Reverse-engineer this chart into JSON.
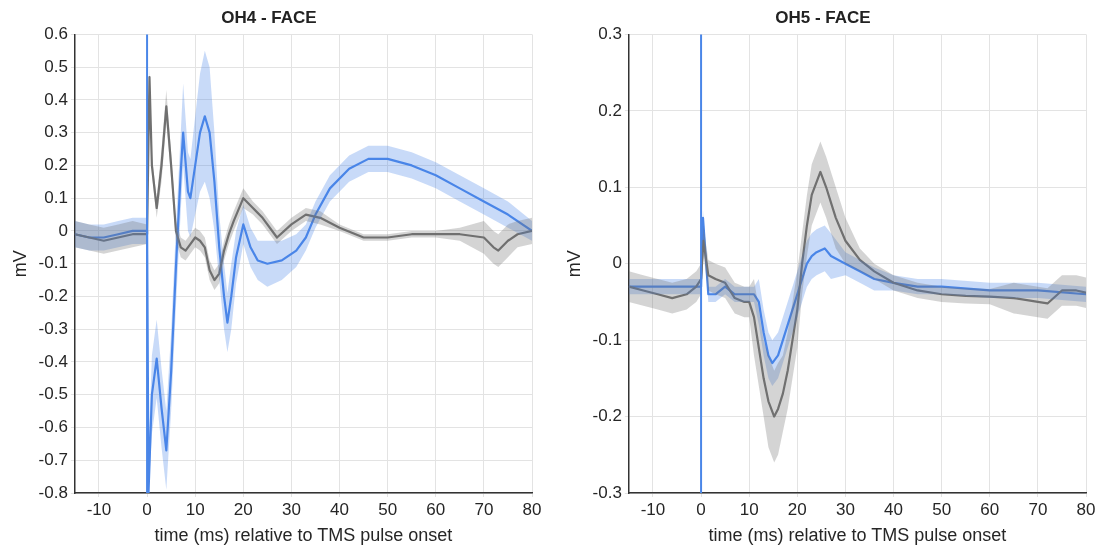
{
  "chart_data": [
    {
      "type": "line",
      "title": "OH4 - FACE",
      "xlabel": "time (ms) relative to TMS pulse onset",
      "ylabel": "mV",
      "xlim": [
        -15,
        80
      ],
      "xticks": [
        -10,
        0,
        10,
        20,
        30,
        40,
        50,
        60,
        70,
        80
      ],
      "ylim": [
        -0.8,
        0.6
      ],
      "yticks": [
        -0.8,
        -0.7,
        -0.6,
        -0.5,
        -0.4,
        -0.3,
        -0.2,
        -0.1,
        0,
        0.1,
        0.2,
        0.3,
        0.4,
        0.5,
        0.6
      ],
      "grid": true,
      "legend": false,
      "marker": "none",
      "line_style": "solid",
      "ref_lines": [
        {
          "axis": "x",
          "value": 0,
          "color": "#4a86e8"
        }
      ],
      "series": [
        {
          "color": "#707070",
          "x": [
            -15,
            -12,
            -9,
            -6,
            -3,
            0,
            0.5,
            1,
            2,
            3,
            4,
            5,
            6,
            7,
            8,
            9,
            10,
            11,
            12,
            13,
            14,
            15,
            16,
            17,
            18,
            20,
            22,
            24,
            27,
            30,
            33,
            36,
            40,
            45,
            50,
            55,
            60,
            65,
            70,
            72,
            73,
            75,
            77,
            80
          ],
          "values": [
            -0.01,
            -0.02,
            -0.03,
            -0.02,
            -0.01,
            -0.01,
            0.47,
            0.2,
            0.07,
            0.2,
            0.38,
            0.2,
            0.0,
            -0.05,
            -0.06,
            -0.04,
            -0.02,
            -0.03,
            -0.05,
            -0.12,
            -0.15,
            -0.13,
            -0.06,
            -0.01,
            0.03,
            0.1,
            0.07,
            0.04,
            -0.02,
            0.02,
            0.05,
            0.04,
            0.01,
            -0.02,
            -0.02,
            -0.01,
            -0.01,
            -0.01,
            -0.02,
            -0.05,
            -0.06,
            -0.03,
            -0.01,
            0.0
          ],
          "lower": [
            -0.05,
            -0.06,
            -0.07,
            -0.06,
            -0.05,
            -0.04,
            0.44,
            0.17,
            0.04,
            0.15,
            0.33,
            0.16,
            -0.03,
            -0.08,
            -0.09,
            -0.07,
            -0.05,
            -0.06,
            -0.08,
            -0.15,
            -0.18,
            -0.16,
            -0.09,
            -0.04,
            0.0,
            0.07,
            0.05,
            0.02,
            -0.04,
            0.0,
            0.03,
            0.02,
            0.0,
            -0.03,
            -0.03,
            -0.02,
            -0.02,
            -0.03,
            -0.07,
            -0.1,
            -0.11,
            -0.08,
            -0.05,
            -0.04
          ],
          "upper": [
            0.03,
            0.02,
            0.01,
            0.02,
            0.03,
            0.02,
            0.5,
            0.23,
            0.1,
            0.25,
            0.43,
            0.24,
            0.03,
            -0.02,
            -0.03,
            -0.01,
            0.01,
            0.0,
            -0.02,
            -0.09,
            -0.12,
            -0.1,
            -0.03,
            0.02,
            0.06,
            0.13,
            0.09,
            0.06,
            0.0,
            0.04,
            0.07,
            0.06,
            0.02,
            -0.01,
            -0.01,
            0.0,
            0.0,
            0.01,
            0.03,
            0.0,
            -0.01,
            0.02,
            0.03,
            0.04
          ]
        },
        {
          "color": "#4a86e8",
          "x": [
            -15,
            -12,
            -9,
            -6,
            -3,
            0,
            0.3,
            1,
            2,
            3,
            4,
            5,
            6,
            7,
            7.5,
            8.5,
            9,
            10,
            11,
            12,
            13,
            14,
            15,
            16,
            16.7,
            17.5,
            18.5,
            20,
            21.5,
            23,
            25,
            28,
            31,
            33,
            35,
            38,
            42,
            46,
            50,
            55,
            60,
            65,
            70,
            75,
            80
          ],
          "values": [
            -0.01,
            -0.02,
            -0.02,
            -0.01,
            0.0,
            0.0,
            -0.8,
            -0.5,
            -0.39,
            -0.54,
            -0.67,
            -0.43,
            -0.11,
            0.18,
            0.3,
            0.12,
            0.1,
            0.2,
            0.3,
            0.35,
            0.3,
            0.15,
            -0.05,
            -0.2,
            -0.28,
            -0.2,
            -0.08,
            0.02,
            -0.05,
            -0.09,
            -0.1,
            -0.09,
            -0.06,
            -0.02,
            0.05,
            0.13,
            0.19,
            0.22,
            0.22,
            0.2,
            0.17,
            0.13,
            0.09,
            0.05,
            0.0
          ],
          "lower": [
            -0.05,
            -0.06,
            -0.06,
            -0.05,
            -0.04,
            -0.04,
            -0.8,
            -0.62,
            -0.51,
            -0.66,
            -0.79,
            -0.55,
            -0.23,
            0.06,
            0.2,
            0.0,
            -0.02,
            0.05,
            0.12,
            0.15,
            0.1,
            0.0,
            -0.15,
            -0.3,
            -0.37,
            -0.3,
            -0.16,
            -0.04,
            -0.11,
            -0.15,
            -0.17,
            -0.15,
            -0.11,
            -0.06,
            0.01,
            0.09,
            0.15,
            0.18,
            0.18,
            0.16,
            0.13,
            0.09,
            0.05,
            0.01,
            -0.03
          ],
          "upper": [
            0.03,
            0.02,
            0.02,
            0.03,
            0.04,
            0.04,
            -0.68,
            -0.38,
            -0.27,
            -0.42,
            -0.55,
            -0.31,
            0.01,
            0.3,
            0.45,
            0.24,
            0.22,
            0.35,
            0.48,
            0.55,
            0.5,
            0.3,
            0.05,
            -0.1,
            -0.19,
            -0.1,
            0.0,
            0.08,
            0.01,
            -0.03,
            -0.03,
            -0.03,
            -0.01,
            0.02,
            0.09,
            0.17,
            0.23,
            0.26,
            0.26,
            0.24,
            0.21,
            0.17,
            0.13,
            0.09,
            0.03
          ]
        }
      ]
    },
    {
      "type": "line",
      "title": "OH5 - FACE",
      "xlabel": "time (ms) relative to TMS pulse onset",
      "ylabel": "mV",
      "xlim": [
        -15,
        80
      ],
      "xticks": [
        -10,
        0,
        10,
        20,
        30,
        40,
        50,
        60,
        70,
        80
      ],
      "ylim": [
        -0.3,
        0.3
      ],
      "yticks": [
        -0.3,
        -0.2,
        -0.1,
        0,
        0.1,
        0.2,
        0.3
      ],
      "grid": true,
      "legend": false,
      "marker": "none",
      "line_style": "solid",
      "ref_lines": [
        {
          "axis": "x",
          "value": 0,
          "color": "#4a86e8"
        }
      ],
      "series": [
        {
          "color": "#707070",
          "x": [
            -15,
            -12,
            -9,
            -6,
            -3,
            -1,
            0,
            0.5,
            1.5,
            3,
            5,
            7,
            9,
            10,
            11,
            12,
            13,
            14,
            15.2,
            16,
            17,
            18,
            19,
            20,
            21,
            22,
            23,
            24.8,
            26,
            27,
            28,
            30,
            33,
            36,
            40,
            45,
            50,
            55,
            60,
            65,
            70,
            72,
            75,
            78,
            80
          ],
          "values": [
            -0.03,
            -0.035,
            -0.04,
            -0.045,
            -0.04,
            -0.03,
            -0.02,
            0.03,
            -0.015,
            -0.02,
            -0.025,
            -0.045,
            -0.05,
            -0.05,
            -0.07,
            -0.11,
            -0.15,
            -0.18,
            -0.2,
            -0.19,
            -0.17,
            -0.14,
            -0.1,
            -0.06,
            0.0,
            0.05,
            0.09,
            0.12,
            0.1,
            0.08,
            0.06,
            0.03,
            0.005,
            -0.01,
            -0.025,
            -0.035,
            -0.04,
            -0.042,
            -0.043,
            -0.045,
            -0.05,
            -0.052,
            -0.035,
            -0.035,
            -0.038
          ],
          "lower": [
            -0.05,
            -0.055,
            -0.06,
            -0.065,
            -0.06,
            -0.05,
            -0.04,
            0.01,
            -0.035,
            -0.04,
            -0.045,
            -0.065,
            -0.07,
            -0.07,
            -0.12,
            -0.16,
            -0.2,
            -0.24,
            -0.26,
            -0.25,
            -0.22,
            -0.19,
            -0.15,
            -0.11,
            -0.04,
            0.01,
            0.05,
            0.08,
            0.06,
            0.04,
            0.02,
            0.0,
            -0.01,
            -0.02,
            -0.035,
            -0.045,
            -0.05,
            -0.052,
            -0.053,
            -0.065,
            -0.07,
            -0.072,
            -0.055,
            -0.055,
            -0.058
          ],
          "upper": [
            -0.01,
            -0.015,
            -0.02,
            -0.025,
            -0.02,
            -0.01,
            0.0,
            0.05,
            0.005,
            0.0,
            -0.005,
            -0.025,
            -0.03,
            -0.03,
            -0.02,
            -0.06,
            -0.1,
            -0.12,
            -0.14,
            -0.13,
            -0.12,
            -0.09,
            -0.05,
            -0.01,
            0.04,
            0.09,
            0.13,
            0.16,
            0.14,
            0.12,
            0.1,
            0.06,
            0.02,
            0.0,
            -0.015,
            -0.025,
            -0.03,
            -0.032,
            -0.033,
            -0.025,
            -0.03,
            -0.032,
            -0.015,
            -0.015,
            -0.018
          ]
        },
        {
          "color": "#4a86e8",
          "x": [
            -15,
            -10,
            -5,
            -1,
            0,
            0.4,
            1.5,
            3,
            5,
            7,
            9,
            11,
            12,
            13,
            14,
            14.8,
            16,
            17,
            18,
            19,
            20,
            21,
            22,
            23,
            24,
            25.7,
            27,
            30,
            33,
            36,
            40,
            45,
            50,
            60,
            70,
            80
          ],
          "values": [
            -0.03,
            -0.03,
            -0.03,
            -0.03,
            -0.03,
            0.06,
            -0.04,
            -0.04,
            -0.03,
            -0.04,
            -0.04,
            -0.04,
            -0.05,
            -0.09,
            -0.12,
            -0.13,
            -0.12,
            -0.1,
            -0.08,
            -0.06,
            -0.04,
            -0.02,
            0.0,
            0.01,
            0.015,
            0.02,
            0.01,
            0.0,
            -0.01,
            -0.02,
            -0.025,
            -0.03,
            -0.03,
            -0.035,
            -0.035,
            -0.04
          ],
          "lower": [
            -0.04,
            -0.04,
            -0.04,
            -0.04,
            -0.04,
            0.05,
            -0.05,
            -0.05,
            -0.04,
            -0.05,
            -0.05,
            -0.05,
            -0.08,
            -0.12,
            -0.15,
            -0.16,
            -0.15,
            -0.13,
            -0.11,
            -0.09,
            -0.07,
            -0.05,
            -0.03,
            -0.02,
            -0.015,
            -0.01,
            -0.02,
            -0.015,
            -0.025,
            -0.035,
            -0.035,
            -0.04,
            -0.04,
            -0.045,
            -0.045,
            -0.05
          ],
          "upper": [
            -0.02,
            -0.02,
            -0.02,
            -0.02,
            -0.02,
            0.07,
            -0.03,
            -0.03,
            -0.02,
            -0.03,
            -0.03,
            -0.03,
            -0.02,
            -0.06,
            -0.09,
            -0.1,
            -0.09,
            -0.07,
            -0.05,
            -0.03,
            -0.01,
            0.01,
            0.03,
            0.04,
            0.045,
            0.05,
            0.04,
            0.015,
            0.005,
            -0.005,
            -0.015,
            -0.02,
            -0.02,
            -0.025,
            -0.025,
            -0.03
          ]
        }
      ]
    }
  ]
}
